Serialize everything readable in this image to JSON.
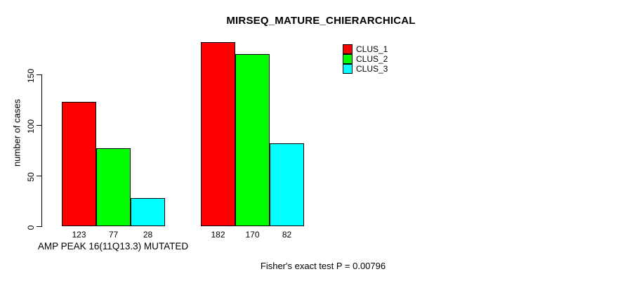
{
  "chart_data": {
    "type": "bar",
    "title": "MIRSEQ_MATURE_CHIERARCHICAL",
    "ylabel": "number of cases",
    "xlabel": "AMP PEAK 16(11Q13.3) MUTATED",
    "categories": [
      "AMP PEAK 16(11Q13.3) MUTATED",
      ""
    ],
    "series": [
      {
        "name": "CLUS_1",
        "color": "#ff0000",
        "values": [
          123,
          182
        ]
      },
      {
        "name": "CLUS_2",
        "color": "#00ff00",
        "values": [
          77,
          170
        ]
      },
      {
        "name": "CLUS_3",
        "color": "#00ffff",
        "values": [
          28,
          82
        ]
      }
    ],
    "yticks": [
      0,
      50,
      100,
      150
    ],
    "ylim": [
      0,
      190
    ],
    "grid": false,
    "legend": {
      "position": "top-right",
      "entries": [
        "CLUS_1",
        "CLUS_2",
        "CLUS_3"
      ]
    },
    "annotations": {
      "bar_value_labels": [
        [
          123,
          77,
          28
        ],
        [
          182,
          170,
          82
        ]
      ],
      "footer": "Fisher's exact test P = 0.00796"
    },
    "colors": {
      "background": "#ffffff",
      "axis": "#000000",
      "text": "#000000"
    }
  }
}
